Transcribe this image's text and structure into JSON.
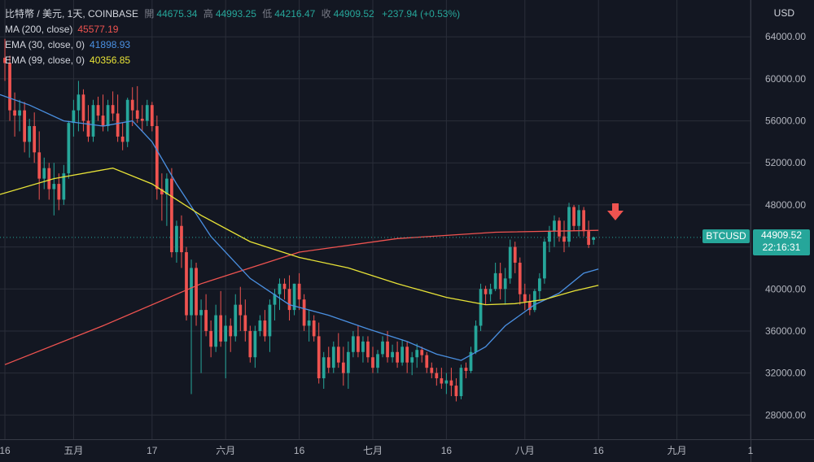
{
  "header": {
    "symbol": "比特幣 / 美元, 1天, COINBASE",
    "open_label": "開",
    "open_value": "44675.34",
    "high_label": "高",
    "high_value": "44993.25",
    "low_label": "低",
    "low_value": "44216.47",
    "close_label": "收",
    "close_value": "44909.52",
    "change": "+237.94 (+0.53%)"
  },
  "indicators": [
    {
      "name": "MA (200, close)",
      "value": "45577.19",
      "color": "#ef5350"
    },
    {
      "name": "EMA (30, close, 0)",
      "value": "41898.93",
      "color": "#4a90e2"
    },
    {
      "name": "EMA (99, close, 0)",
      "value": "40356.85",
      "color": "#e8e337"
    }
  ],
  "currency": "USD",
  "price_tag": {
    "symbol": "BTCUSD",
    "price": "44909.52",
    "countdown": "22:16:31"
  },
  "colors": {
    "up": "#26a69a",
    "down": "#ef5350",
    "background": "#131722",
    "grid": "#2a2e39",
    "text": "#b2b5be",
    "arrow": "#ef5350"
  },
  "chart_data": {
    "type": "candlestick",
    "y_ticks": [
      28000,
      32000,
      36000,
      40000,
      44000,
      48000,
      52000,
      56000,
      60000,
      64000
    ],
    "y_tick_labels": [
      "28000.00",
      "32000.00",
      "36000.00",
      "40000.00",
      "44000.00",
      "48000.00",
      "52000.00",
      "56000.00",
      "60000.00",
      "64000.00"
    ],
    "ylim": [
      25700,
      67500
    ],
    "x_labels": [
      {
        "day": 0,
        "label": "16"
      },
      {
        "day": 14,
        "label": "五月"
      },
      {
        "day": 30,
        "label": "17"
      },
      {
        "day": 45,
        "label": "六月"
      },
      {
        "day": 60,
        "label": "16"
      },
      {
        "day": 75,
        "label": "七月"
      },
      {
        "day": 90,
        "label": "16"
      },
      {
        "day": 106,
        "label": "八月"
      },
      {
        "day": 121,
        "label": "16"
      },
      {
        "day": 137,
        "label": "九月"
      },
      {
        "day": 152,
        "label": "1"
      }
    ],
    "xlim": [
      -1,
      152
    ],
    "candles": [
      [
        62000,
        63800,
        59800,
        61500
      ],
      [
        61500,
        62200,
        56000,
        57000
      ],
      [
        57000,
        58700,
        54500,
        56500
      ],
      [
        56500,
        58000,
        55000,
        57000
      ],
      [
        57000,
        57800,
        53000,
        54000
      ],
      [
        54000,
        56200,
        52500,
        55500
      ],
      [
        55500,
        56800,
        52000,
        53000
      ],
      [
        53000,
        55000,
        48500,
        50500
      ],
      [
        50500,
        52500,
        49500,
        51500
      ],
      [
        51500,
        52000,
        48500,
        49500
      ],
      [
        49500,
        52000,
        47000,
        50000
      ],
      [
        50000,
        51000,
        47500,
        48500
      ],
      [
        48500,
        51800,
        48000,
        51000
      ],
      [
        51000,
        56000,
        50500,
        55800
      ],
      [
        55800,
        58000,
        54500,
        57000
      ],
      [
        57000,
        59800,
        55000,
        58500
      ],
      [
        58500,
        59000,
        55000,
        56000
      ],
      [
        56000,
        57500,
        54000,
        54500
      ],
      [
        54500,
        58000,
        54000,
        57500
      ],
      [
        57500,
        58300,
        56000,
        56500
      ],
      [
        56500,
        58500,
        55000,
        55500
      ],
      [
        55500,
        58000,
        55000,
        57500
      ],
      [
        57500,
        58800,
        56000,
        56700
      ],
      [
        56700,
        58500,
        54000,
        54500
      ],
      [
        54500,
        55800,
        53200,
        54000
      ],
      [
        54000,
        58200,
        53500,
        58000
      ],
      [
        58000,
        59200,
        55500,
        57000
      ],
      [
        57000,
        59300,
        55800,
        56200
      ],
      [
        56200,
        57500,
        55000,
        56000
      ],
      [
        56000,
        58000,
        55500,
        57500
      ],
      [
        57500,
        57800,
        55000,
        55500
      ],
      [
        55500,
        56500,
        48500,
        49500
      ],
      [
        49500,
        51000,
        46500,
        49000
      ],
      [
        49000,
        51000,
        46000,
        50500
      ],
      [
        50500,
        51500,
        43000,
        43500
      ],
      [
        43500,
        46500,
        42500,
        46000
      ],
      [
        46000,
        47000,
        42000,
        43500
      ],
      [
        43500,
        44000,
        37000,
        37500
      ],
      [
        37500,
        42800,
        30000,
        42000
      ],
      [
        42000,
        42500,
        36500,
        37500
      ],
      [
        37500,
        39000,
        32000,
        38000
      ],
      [
        38000,
        39500,
        35500,
        36000
      ],
      [
        36000,
        37000,
        33500,
        34500
      ],
      [
        34500,
        38500,
        34000,
        37500
      ],
      [
        37500,
        39800,
        34500,
        35000
      ],
      [
        35000,
        37500,
        31500,
        36500
      ],
      [
        36500,
        37200,
        34000,
        35500
      ],
      [
        35500,
        39500,
        35000,
        38500
      ],
      [
        38500,
        40200,
        36000,
        37500
      ],
      [
        37500,
        39000,
        35000,
        36000
      ],
      [
        36000,
        36500,
        33000,
        33500
      ],
      [
        33500,
        36500,
        32500,
        36000
      ],
      [
        36000,
        37500,
        35500,
        37000
      ],
      [
        37000,
        38000,
        35000,
        35500
      ],
      [
        35500,
        39000,
        34000,
        38500
      ],
      [
        38500,
        40000,
        37000,
        39500
      ],
      [
        39500,
        41000,
        38000,
        40500
      ],
      [
        40500,
        41000,
        39000,
        40000
      ],
      [
        40000,
        41300,
        37000,
        38000
      ],
      [
        38000,
        40500,
        37500,
        40500
      ],
      [
        40500,
        41500,
        38000,
        39000
      ],
      [
        39000,
        39500,
        36000,
        36500
      ],
      [
        36500,
        38000,
        35000,
        37000
      ],
      [
        37000,
        37500,
        35000,
        35500
      ],
      [
        35500,
        36800,
        31000,
        31500
      ],
      [
        31500,
        34000,
        30500,
        33500
      ],
      [
        33500,
        34500,
        32000,
        32500
      ],
      [
        32500,
        35000,
        32000,
        34500
      ],
      [
        34500,
        35800,
        32500,
        33000
      ],
      [
        33000,
        34500,
        30800,
        32000
      ],
      [
        32000,
        35000,
        30500,
        34000
      ],
      [
        34000,
        36000,
        33500,
        35500
      ],
      [
        35500,
        36500,
        33500,
        34000
      ],
      [
        34000,
        35500,
        33000,
        35000
      ],
      [
        35000,
        35500,
        33000,
        33500
      ],
      [
        33500,
        34500,
        32000,
        32500
      ],
      [
        32500,
        34200,
        32000,
        33800
      ],
      [
        33800,
        35500,
        33500,
        35000
      ],
      [
        35000,
        36000,
        33000,
        33500
      ],
      [
        33500,
        34700,
        33000,
        34000
      ],
      [
        34000,
        35000,
        32500,
        33000
      ],
      [
        33000,
        35200,
        32700,
        34500
      ],
      [
        34500,
        35000,
        32000,
        33000
      ],
      [
        33000,
        34000,
        31800,
        33500
      ],
      [
        33500,
        34800,
        32500,
        34200
      ],
      [
        34200,
        34500,
        33000,
        33700
      ],
      [
        33700,
        34000,
        32000,
        32500
      ],
      [
        32500,
        33000,
        31500,
        32000
      ],
      [
        32000,
        32500,
        30800,
        31500
      ],
      [
        31500,
        32500,
        30500,
        31000
      ],
      [
        31000,
        32000,
        30000,
        31300
      ],
      [
        31300,
        32500,
        29800,
        30800
      ],
      [
        30800,
        31500,
        29300,
        29800
      ],
      [
        29800,
        32800,
        29500,
        32500
      ],
      [
        32500,
        33000,
        31500,
        32200
      ],
      [
        32200,
        34500,
        32000,
        34000
      ],
      [
        34000,
        37000,
        33800,
        36500
      ],
      [
        36500,
        40500,
        36000,
        40000
      ],
      [
        40000,
        40300,
        38500,
        39500
      ],
      [
        39500,
        40500,
        38800,
        40000
      ],
      [
        40000,
        42500,
        39800,
        41500
      ],
      [
        41500,
        42500,
        39000,
        40000
      ],
      [
        40000,
        42000,
        38500,
        41000
      ],
      [
        41000,
        44700,
        40500,
        44000
      ],
      [
        44000,
        44500,
        41500,
        42500
      ],
      [
        42500,
        43000,
        38500,
        39500
      ],
      [
        39500,
        40500,
        38000,
        38800
      ],
      [
        38800,
        39500,
        37500,
        38000
      ],
      [
        38000,
        40000,
        37800,
        39800
      ],
      [
        39800,
        41500,
        39000,
        41000
      ],
      [
        41000,
        44800,
        40500,
        44500
      ],
      [
        44500,
        46000,
        43500,
        45500
      ],
      [
        45500,
        47000,
        44000,
        46500
      ],
      [
        46500,
        46800,
        44500,
        45000
      ],
      [
        45000,
        46500,
        43500,
        44500
      ],
      [
        44500,
        48200,
        44000,
        47800
      ],
      [
        47800,
        48000,
        45500,
        46000
      ],
      [
        46000,
        48000,
        45000,
        47500
      ],
      [
        47500,
        47800,
        45000,
        45500
      ],
      [
        45500,
        46500,
        43900,
        44200
      ],
      [
        44675,
        44990,
        44216,
        44910
      ]
    ],
    "ma200": [
      [
        0,
        32800
      ],
      [
        20,
        36500
      ],
      [
        40,
        40500
      ],
      [
        60,
        43500
      ],
      [
        80,
        44800
      ],
      [
        100,
        45400
      ],
      [
        121,
        45577
      ]
    ],
    "ema30": [
      [
        -1,
        58500
      ],
      [
        5,
        57500
      ],
      [
        12,
        56000
      ],
      [
        20,
        55500
      ],
      [
        26,
        56000
      ],
      [
        30,
        54000
      ],
      [
        35,
        50000
      ],
      [
        42,
        45000
      ],
      [
        50,
        41000
      ],
      [
        58,
        38500
      ],
      [
        66,
        37500
      ],
      [
        74,
        36200
      ],
      [
        82,
        35000
      ],
      [
        88,
        33800
      ],
      [
        93,
        33200
      ],
      [
        98,
        34500
      ],
      [
        102,
        36500
      ],
      [
        108,
        38500
      ],
      [
        113,
        39600
      ],
      [
        118,
        41500
      ],
      [
        121,
        41900
      ]
    ],
    "ema99": [
      [
        -1,
        49000
      ],
      [
        10,
        50500
      ],
      [
        22,
        51500
      ],
      [
        30,
        50000
      ],
      [
        40,
        47000
      ],
      [
        50,
        44500
      ],
      [
        60,
        43000
      ],
      [
        70,
        42000
      ],
      [
        80,
        40500
      ],
      [
        90,
        39200
      ],
      [
        98,
        38500
      ],
      [
        104,
        38600
      ],
      [
        110,
        39000
      ],
      [
        116,
        39800
      ],
      [
        121,
        40357
      ]
    ],
    "last_price": 44909.52
  }
}
